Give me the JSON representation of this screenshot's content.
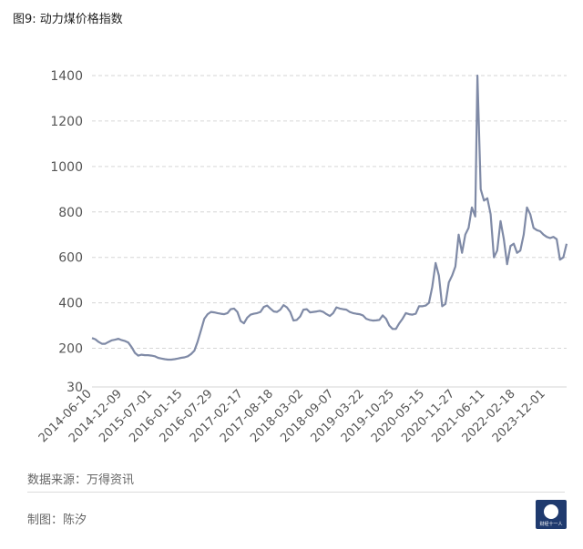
{
  "title": "图9: 动力煤价格指数",
  "source": "数据来源：万得资讯",
  "author": "制图：陈汐",
  "logo_text": "财经十一人",
  "colors": {
    "line": "#7f8aa6",
    "grid": "#d6d6d6",
    "axis_text": "#555555",
    "logo_bg": "#1f3a6e"
  },
  "chart_data": {
    "type": "line",
    "title": "动力煤价格指数",
    "xlabel": "",
    "ylabel": "",
    "ylim": [
      30,
      1400
    ],
    "yticks": [
      30,
      200,
      400,
      600,
      800,
      1000,
      1200,
      1400
    ],
    "xticks": [
      "2014-06-10",
      "2014-12-09",
      "2015-07-01",
      "2016-01-15",
      "2016-07-29",
      "2017-02-17",
      "2017-08-18",
      "2018-03-02",
      "2018-09-07",
      "2019-03-22",
      "2019-10-25",
      "2020-05-15",
      "2020-11-27",
      "2021-06-11",
      "2022-02-18",
      "2023-12-01"
    ],
    "grid": true,
    "series": [
      {
        "values": [
          [
            0,
            245
          ],
          [
            3,
            240
          ],
          [
            6,
            228
          ],
          [
            9,
            220
          ],
          [
            12,
            220
          ],
          [
            15,
            228
          ],
          [
            18,
            235
          ],
          [
            21,
            238
          ],
          [
            24,
            242
          ],
          [
            27,
            236
          ],
          [
            30,
            232
          ],
          [
            33,
            225
          ],
          [
            36,
            205
          ],
          [
            39,
            180
          ],
          [
            42,
            168
          ],
          [
            45,
            172
          ],
          [
            48,
            170
          ],
          [
            51,
            170
          ],
          [
            54,
            168
          ],
          [
            57,
            165
          ],
          [
            60,
            158
          ],
          [
            63,
            155
          ],
          [
            66,
            152
          ],
          [
            69,
            150
          ],
          [
            72,
            150
          ],
          [
            75,
            152
          ],
          [
            78,
            155
          ],
          [
            81,
            158
          ],
          [
            84,
            160
          ],
          [
            87,
            165
          ],
          [
            90,
            175
          ],
          [
            93,
            190
          ],
          [
            96,
            230
          ],
          [
            99,
            280
          ],
          [
            102,
            330
          ],
          [
            105,
            350
          ],
          [
            108,
            360
          ],
          [
            111,
            358
          ],
          [
            114,
            355
          ],
          [
            117,
            352
          ],
          [
            120,
            350
          ],
          [
            123,
            355
          ],
          [
            126,
            372
          ],
          [
            129,
            375
          ],
          [
            132,
            360
          ],
          [
            135,
            320
          ],
          [
            138,
            310
          ],
          [
            141,
            335
          ],
          [
            144,
            348
          ],
          [
            147,
            352
          ],
          [
            150,
            355
          ],
          [
            153,
            360
          ],
          [
            156,
            382
          ],
          [
            159,
            388
          ],
          [
            162,
            375
          ],
          [
            165,
            362
          ],
          [
            168,
            360
          ],
          [
            171,
            370
          ],
          [
            174,
            390
          ],
          [
            177,
            380
          ],
          [
            180,
            360
          ],
          [
            183,
            322
          ],
          [
            186,
            325
          ],
          [
            189,
            340
          ],
          [
            192,
            370
          ],
          [
            195,
            372
          ],
          [
            198,
            358
          ],
          [
            201,
            360
          ],
          [
            204,
            362
          ],
          [
            207,
            365
          ],
          [
            210,
            360
          ],
          [
            213,
            350
          ],
          [
            216,
            342
          ],
          [
            219,
            355
          ],
          [
            222,
            380
          ],
          [
            225,
            375
          ],
          [
            228,
            372
          ],
          [
            231,
            370
          ],
          [
            234,
            360
          ],
          [
            237,
            355
          ],
          [
            240,
            352
          ],
          [
            243,
            350
          ],
          [
            246,
            345
          ],
          [
            249,
            330
          ],
          [
            252,
            325
          ],
          [
            255,
            322
          ],
          [
            258,
            323
          ],
          [
            261,
            325
          ],
          [
            264,
            345
          ],
          [
            267,
            330
          ],
          [
            270,
            300
          ],
          [
            273,
            285
          ],
          [
            276,
            285
          ],
          [
            279,
            310
          ],
          [
            282,
            330
          ],
          [
            285,
            355
          ],
          [
            288,
            350
          ],
          [
            291,
            348
          ],
          [
            294,
            352
          ],
          [
            297,
            385
          ],
          [
            300,
            385
          ],
          [
            303,
            388
          ],
          [
            306,
            400
          ],
          [
            309,
            470
          ],
          [
            312,
            575
          ],
          [
            315,
            520
          ],
          [
            318,
            385
          ],
          [
            321,
            395
          ],
          [
            324,
            490
          ],
          [
            327,
            520
          ],
          [
            330,
            560
          ],
          [
            333,
            700
          ],
          [
            336,
            620
          ],
          [
            339,
            700
          ],
          [
            342,
            730
          ],
          [
            345,
            820
          ],
          [
            348,
            780
          ],
          [
            350,
            1400
          ],
          [
            353,
            900
          ],
          [
            356,
            850
          ],
          [
            359,
            860
          ],
          [
            362,
            790
          ],
          [
            365,
            600
          ],
          [
            368,
            630
          ],
          [
            371,
            760
          ],
          [
            374,
            680
          ],
          [
            377,
            570
          ],
          [
            380,
            650
          ],
          [
            383,
            660
          ],
          [
            386,
            620
          ],
          [
            389,
            630
          ],
          [
            392,
            700
          ],
          [
            395,
            820
          ],
          [
            398,
            790
          ],
          [
            401,
            730
          ],
          [
            404,
            720
          ],
          [
            407,
            715
          ],
          [
            410,
            700
          ],
          [
            413,
            690
          ],
          [
            416,
            685
          ],
          [
            419,
            690
          ],
          [
            422,
            680
          ],
          [
            425,
            590
          ],
          [
            428,
            600
          ],
          [
            431,
            660
          ]
        ]
      }
    ]
  }
}
